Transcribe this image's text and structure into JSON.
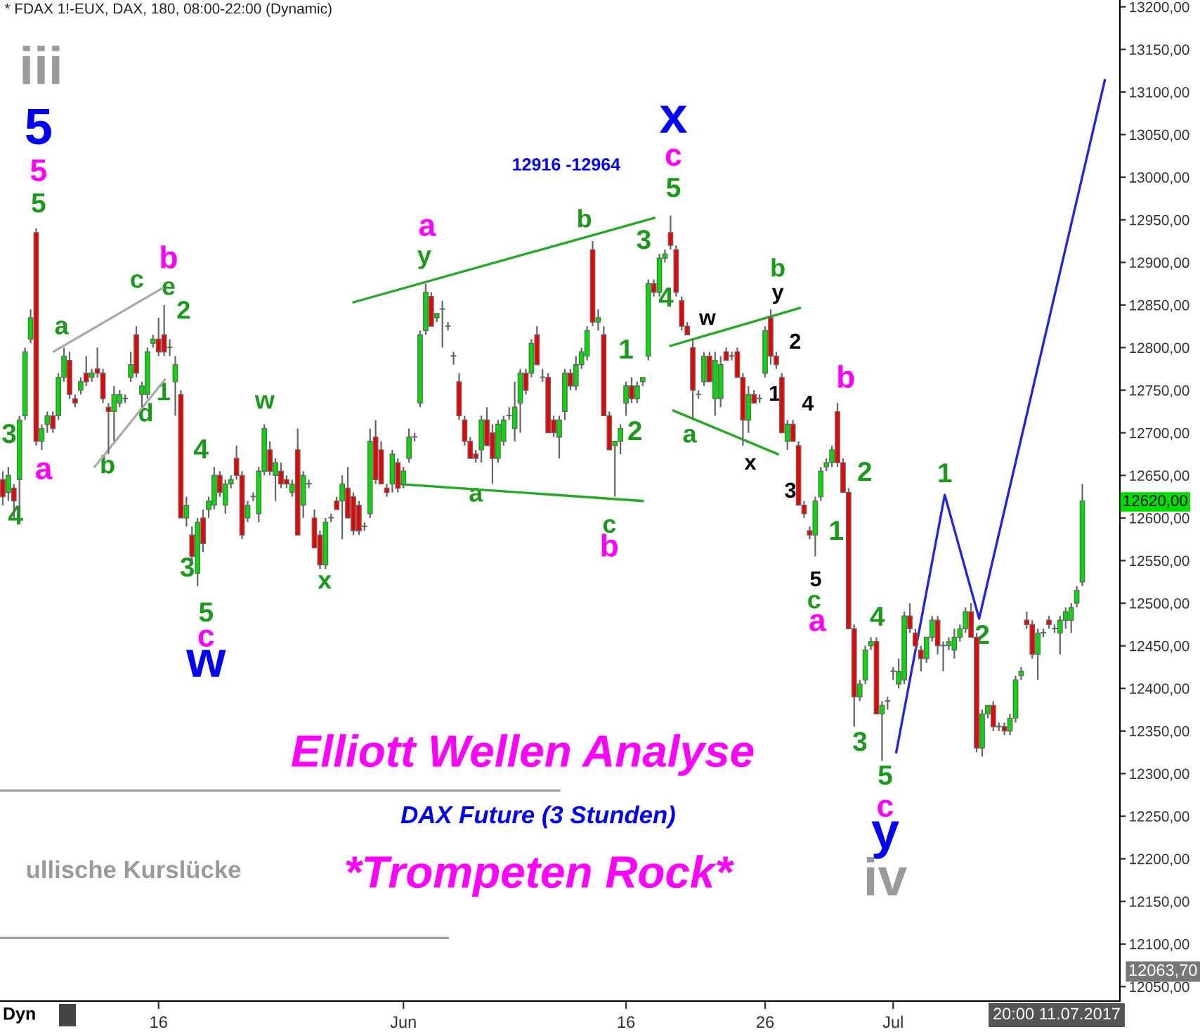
{
  "chart_data": {
    "type": "candlestick",
    "title": "* FDAX 1!-EUX, DAX, 180, 08:00-22:00 (Dynamic)",
    "categories": [
      null,
      null,
      null,
      null,
      null,
      null,
      null,
      null,
      null,
      null,
      null,
      null,
      null,
      null,
      null,
      null,
      null,
      null,
      null,
      null,
      null,
      null,
      null,
      null,
      null,
      null,
      null,
      null,
      "16",
      null,
      null,
      null,
      null,
      null,
      null,
      null,
      null,
      null,
      null,
      null,
      null,
      null,
      null,
      null,
      null,
      null,
      null,
      null,
      null,
      null,
      null,
      null,
      null,
      null,
      null,
      null,
      null,
      null,
      null,
      null,
      null,
      null,
      null,
      null,
      null,
      null,
      null,
      null,
      null,
      null,
      null,
      null,
      "Jun",
      null,
      null,
      null,
      null,
      null,
      null,
      null,
      null,
      null,
      null,
      null,
      null,
      null,
      null,
      null,
      null,
      null,
      null,
      null,
      null,
      null,
      null,
      null,
      null,
      null,
      null,
      null,
      null,
      null,
      null,
      null,
      null,
      null,
      null,
      null,
      null,
      null,
      null,
      null,
      "16",
      null,
      null,
      null,
      null,
      null,
      null,
      null,
      null,
      null,
      null,
      null,
      null,
      null,
      null,
      null,
      null,
      null,
      null,
      null,
      null,
      null,
      null,
      null,
      null,
      "26",
      null,
      null,
      null,
      null,
      null,
      null,
      null,
      null,
      null,
      null,
      null,
      null,
      null,
      null,
      null,
      null,
      null,
      null,
      null,
      null,
      null,
      null,
      "Jul",
      null,
      null,
      null,
      null,
      null,
      null,
      null,
      null,
      null,
      null,
      null,
      null,
      null,
      null,
      null,
      null,
      null,
      null,
      null,
      null,
      null,
      null,
      null,
      null,
      null,
      null,
      null,
      null,
      null,
      null,
      null,
      null,
      null,
      null
    ],
    "ohlc": [
      [
        12645,
        12655,
        12615,
        12625
      ],
      [
        12630,
        12660,
        12620,
        12650
      ],
      [
        12635,
        12640,
        12600,
        12620
      ],
      [
        12645,
        12720,
        12605,
        12715
      ],
      [
        12720,
        12800,
        12715,
        12795
      ],
      [
        12810,
        12845,
        12805,
        12835
      ],
      [
        12935,
        12940,
        12685,
        12690
      ],
      [
        12690,
        12710,
        12680,
        12705
      ],
      [
        12710,
        12725,
        12700,
        12720
      ],
      [
        12720,
        12725,
        12700,
        12705
      ],
      [
        12720,
        12770,
        12715,
        12765
      ],
      [
        12765,
        12800,
        12760,
        12790
      ],
      [
        12785,
        12795,
        12740,
        12745
      ],
      [
        12740,
        12745,
        12730,
        12735
      ],
      [
        12750,
        12765,
        12745,
        12760
      ],
      [
        12770,
        12790,
        12755,
        12760
      ],
      [
        12765,
        12775,
        12760,
        12770
      ],
      [
        12775,
        12800,
        12765,
        12770
      ],
      [
        12770,
        12775,
        12735,
        12740
      ],
      [
        12730,
        12735,
        12675,
        12725
      ],
      [
        12725,
        12755,
        12690,
        12745
      ],
      [
        12735,
        12750,
        12730,
        12745
      ],
      [
        12740,
        12745,
        12735,
        12740
      ],
      [
        12765,
        12795,
        12760,
        12780
      ],
      [
        12815,
        12825,
        12765,
        12770
      ],
      [
        12745,
        12760,
        12730,
        12755
      ],
      [
        12745,
        12800,
        12740,
        12795
      ],
      [
        12805,
        12815,
        12800,
        12810
      ],
      [
        12810,
        12835,
        12790,
        12795
      ],
      [
        12815,
        12850,
        12790,
        12795
      ],
      [
        12800,
        12810,
        12790,
        12800
      ],
      [
        12760,
        12790,
        12720,
        12780
      ],
      [
        12745,
        12750,
        12600,
        12600
      ],
      [
        12600,
        12625,
        12590,
        12615
      ],
      [
        12580,
        12590,
        12545,
        12555
      ],
      [
        12535,
        12600,
        12520,
        12595
      ],
      [
        12600,
        12610,
        12560,
        12570
      ],
      [
        12610,
        12625,
        12600,
        12620
      ],
      [
        12615,
        12660,
        12610,
        12650
      ],
      [
        12650,
        12655,
        12625,
        12630
      ],
      [
        12615,
        12645,
        12605,
        12640
      ],
      [
        12640,
        12650,
        12635,
        12645
      ],
      [
        12670,
        12685,
        12645,
        12650
      ],
      [
        12650,
        12655,
        12575,
        12580
      ],
      [
        12600,
        12620,
        12595,
        12615
      ],
      [
        12625,
        12630,
        12620,
        12625
      ],
      [
        12605,
        12660,
        12595,
        12655
      ],
      [
        12655,
        12710,
        12650,
        12705
      ],
      [
        12680,
        12690,
        12650,
        12655
      ],
      [
        12650,
        12670,
        12620,
        12665
      ],
      [
        12655,
        12665,
        12635,
        12640
      ],
      [
        12645,
        12650,
        12635,
        12640
      ],
      [
        12630,
        12645,
        12625,
        12640
      ],
      [
        12680,
        12705,
        12580,
        12580
      ],
      [
        12615,
        12655,
        12600,
        12650
      ],
      [
        12640,
        12645,
        12635,
        12640
      ],
      [
        12600,
        12610,
        12565,
        12565
      ],
      [
        12580,
        12585,
        12540,
        12545
      ],
      [
        12545,
        12600,
        12540,
        12595
      ],
      [
        12600,
        12605,
        12595,
        12600
      ],
      [
        12620,
        12625,
        12610,
        12610
      ],
      [
        12620,
        12650,
        12575,
        12640
      ],
      [
        12635,
        12660,
        12600,
        12600
      ],
      [
        12625,
        12630,
        12580,
        12585
      ],
      [
        12615,
        12620,
        12580,
        12585
      ],
      [
        12590,
        12595,
        12585,
        12590
      ],
      [
        12605,
        12705,
        12600,
        12690
      ],
      [
        12695,
        12715,
        12640,
        12645
      ],
      [
        12680,
        12690,
        12640,
        12640
      ],
      [
        12635,
        12640,
        12625,
        12630
      ],
      [
        12640,
        12680,
        12630,
        12675
      ],
      [
        12665,
        12670,
        12630,
        12635
      ],
      [
        12640,
        12660,
        12635,
        12655
      ],
      [
        12670,
        12705,
        12665,
        12695
      ],
      [
        12695,
        12700,
        12690,
        12695
      ],
      [
        12735,
        12820,
        12730,
        12815
      ],
      [
        12820,
        12875,
        12815,
        12865
      ],
      [
        12860,
        12865,
        12825,
        12825
      ],
      [
        12835,
        12840,
        12830,
        12840
      ],
      [
        12845,
        12855,
        12800,
        12845
      ],
      [
        12825,
        12830,
        12820,
        12825
      ],
      [
        12790,
        12795,
        12780,
        12790
      ],
      [
        12760,
        12770,
        12715,
        12720
      ],
      [
        12715,
        12720,
        12685,
        12690
      ],
      [
        12690,
        12695,
        12670,
        12670
      ],
      [
        12675,
        12680,
        12665,
        12670
      ],
      [
        12680,
        12720,
        12665,
        12715
      ],
      [
        12715,
        12730,
        12685,
        12685
      ],
      [
        12700,
        12710,
        12640,
        12670
      ],
      [
        12670,
        12715,
        12665,
        12710
      ],
      [
        12690,
        12720,
        12685,
        12715
      ],
      [
        12720,
        12730,
        12715,
        12720
      ],
      [
        12705,
        12760,
        12690,
        12730
      ],
      [
        12735,
        12775,
        12700,
        12770
      ],
      [
        12770,
        12775,
        12745,
        12750
      ],
      [
        12770,
        12810,
        12765,
        12805
      ],
      [
        12815,
        12825,
        12780,
        12780
      ],
      [
        12765,
        12775,
        12760,
        12765
      ],
      [
        12765,
        12770,
        12700,
        12700
      ],
      [
        12715,
        12720,
        12695,
        12700
      ],
      [
        12695,
        12720,
        12670,
        12715
      ],
      [
        12725,
        12775,
        12715,
        12770
      ],
      [
        12770,
        12775,
        12750,
        12755
      ],
      [
        12755,
        12790,
        12750,
        12780
      ],
      [
        12780,
        12800,
        12775,
        12795
      ],
      [
        12790,
        12825,
        12785,
        12820
      ],
      [
        12915,
        12925,
        12825,
        12830
      ],
      [
        12830,
        12845,
        12820,
        12835
      ],
      [
        12815,
        12825,
        12720,
        12720
      ],
      [
        12720,
        12725,
        12680,
        12680
      ],
      [
        12685,
        12690,
        12625,
        12690
      ],
      [
        12690,
        12710,
        12675,
        12705
      ],
      [
        12735,
        12760,
        12720,
        12755
      ],
      [
        12755,
        12765,
        12735,
        12740
      ],
      [
        12740,
        12760,
        12735,
        12755
      ],
      [
        12760,
        12765,
        12755,
        12765
      ],
      [
        12790,
        12880,
        12785,
        12875
      ],
      [
        12875,
        12880,
        12860,
        12865
      ],
      [
        12865,
        12910,
        12860,
        12905
      ],
      [
        12905,
        12915,
        12900,
        12910
      ],
      [
        12935,
        12955,
        12915,
        12920
      ],
      [
        12915,
        12920,
        12860,
        12865
      ],
      [
        12855,
        12860,
        12820,
        12825
      ],
      [
        12825,
        12830,
        12815,
        12815
      ],
      [
        12800,
        12810,
        12715,
        12750
      ],
      [
        12745,
        12750,
        12740,
        12745
      ],
      [
        12760,
        12795,
        12755,
        12790
      ],
      [
        12790,
        12795,
        12760,
        12760
      ],
      [
        12740,
        12795,
        12720,
        12785
      ],
      [
        12740,
        12790,
        12730,
        12780
      ],
      [
        12795,
        12800,
        12785,
        12785
      ],
      [
        12790,
        12795,
        12785,
        12790
      ],
      [
        12795,
        12800,
        12765,
        12765
      ],
      [
        12765,
        12770,
        12685,
        12715
      ],
      [
        12715,
        12755,
        12700,
        12745
      ],
      [
        12745,
        12750,
        12735,
        12735
      ],
      [
        12740,
        12745,
        12735,
        12740
      ],
      [
        12770,
        12825,
        12765,
        12820
      ],
      [
        12835,
        12845,
        12780,
        12790
      ],
      [
        12790,
        12795,
        12775,
        12780
      ],
      [
        12765,
        12770,
        12700,
        12700
      ],
      [
        12690,
        12715,
        12680,
        12710
      ],
      [
        12710,
        12715,
        12690,
        12690
      ],
      [
        12685,
        12690,
        12615,
        12615
      ],
      [
        12615,
        12620,
        12600,
        12605
      ],
      [
        12585,
        12590,
        12575,
        12580
      ],
      [
        12580,
        12625,
        12555,
        12620
      ],
      [
        12625,
        12660,
        12620,
        12655
      ],
      [
        12660,
        12670,
        12655,
        12665
      ],
      [
        12665,
        12685,
        12660,
        12680
      ],
      [
        12725,
        12735,
        12660,
        12665
      ],
      [
        12665,
        12670,
        12630,
        12630
      ],
      [
        12630,
        12635,
        12470,
        12470
      ],
      [
        12470,
        12475,
        12355,
        12390
      ],
      [
        12390,
        12410,
        12385,
        12405
      ],
      [
        12410,
        12450,
        12405,
        12445
      ],
      [
        12450,
        12460,
        12445,
        12455
      ],
      [
        12455,
        12460,
        12370,
        12370
      ],
      [
        12370,
        12385,
        12315,
        12380
      ],
      [
        12385,
        12390,
        12375,
        12385
      ],
      [
        12420,
        12425,
        12410,
        12420
      ],
      [
        12405,
        12435,
        12400,
        12420
      ],
      [
        12410,
        12490,
        12405,
        12485
      ],
      [
        12485,
        12500,
        12465,
        12470
      ],
      [
        12465,
        12470,
        12445,
        12450
      ],
      [
        12445,
        12450,
        12420,
        12435
      ],
      [
        12435,
        12460,
        12430,
        12460
      ],
      [
        12460,
        12485,
        12455,
        12480
      ],
      [
        12480,
        12485,
        12440,
        12450
      ],
      [
        12450,
        12455,
        12420,
        12450
      ],
      [
        12450,
        12460,
        12445,
        12455
      ],
      [
        12445,
        12470,
        12435,
        12460
      ],
      [
        12460,
        12475,
        12455,
        12470
      ],
      [
        12470,
        12495,
        12465,
        12490
      ],
      [
        12490,
        12500,
        12460,
        12460
      ],
      [
        12460,
        12465,
        12325,
        12330
      ],
      [
        12330,
        12375,
        12320,
        12370
      ],
      [
        12370,
        12380,
        12365,
        12380
      ],
      [
        12380,
        12385,
        12350,
        12355
      ],
      [
        12355,
        12360,
        12350,
        12355
      ],
      [
        12355,
        12360,
        12345,
        12350
      ],
      [
        12350,
        12370,
        12345,
        12365
      ],
      [
        12365,
        12415,
        12360,
        12410
      ],
      [
        12415,
        12425,
        12410,
        12420
      ],
      [
        12480,
        12490,
        12470,
        12475
      ],
      [
        12475,
        12480,
        12435,
        12440
      ],
      [
        12440,
        12470,
        12410,
        12465
      ],
      [
        12465,
        12470,
        12460,
        12465
      ],
      [
        12480,
        12485,
        12470,
        12475
      ],
      [
        12470,
        12475,
        12465,
        12470
      ],
      [
        12465,
        12485,
        12440,
        12480
      ],
      [
        12480,
        12495,
        12470,
        12490
      ],
      [
        12480,
        12500,
        12465,
        12495
      ],
      [
        12500,
        12520,
        12495,
        12515
      ],
      [
        12525,
        12640,
        12520,
        12620
      ]
    ],
    "series": [
      {
        "type": "line",
        "color": "#22aa22",
        "values": [
          null,
          null,
          null,
          null,
          null,
          null,
          null,
          null,
          null,
          null,
          null,
          null,
          null,
          null,
          null,
          null,
          null,
          null,
          null,
          null,
          null,
          null,
          null,
          null,
          null,
          null,
          null,
          null,
          null,
          null,
          null,
          null,
          null,
          null,
          null,
          null,
          null,
          null,
          null,
          null,
          null,
          null,
          null,
          null,
          null,
          null,
          null,
          null,
          null,
          null,
          null,
          null,
          null,
          null,
          null,
          null,
          null,
          null,
          null,
          null,
          null,
          null,
          null,
          null,
          null,
          null,
          null,
          null,
          null,
          null,
          null,
          12640,
          null,
          null,
          null,
          null,
          null,
          null,
          null,
          null,
          null,
          null,
          null,
          null,
          null,
          null,
          null,
          null,
          null,
          null,
          null,
          null,
          null,
          null,
          null,
          null,
          null,
          null,
          null,
          null,
          null,
          null,
          null,
          null,
          null,
          null,
          null,
          null,
          null,
          null,
          null,
          null,
          null,
          null,
          null,
          12620,
          null,
          null,
          null,
          null,
          null,
          null,
          null,
          null,
          null,
          null,
          null,
          null,
          null,
          null,
          null,
          null,
          null,
          null,
          null,
          null,
          null,
          null,
          null,
          null,
          null,
          null,
          null,
          null,
          null,
          null,
          null,
          null,
          null,
          null,
          null,
          null,
          null,
          null,
          null,
          null,
          null,
          null,
          null,
          null,
          null,
          null,
          null,
          null,
          null,
          null,
          null,
          null,
          null,
          null,
          null,
          null,
          null,
          null,
          null,
          null,
          null,
          null,
          null,
          null,
          null,
          null,
          null,
          null,
          null,
          null,
          null,
          null,
          null,
          null,
          null,
          null,
          null,
          null,
          null
        ]
      }
    ],
    "ylim": [
      12033,
      13208
    ],
    "yticks": [
      {
        "value": 12050,
        "label": "12050,00"
      },
      {
        "value": 12100,
        "label": "12100,00"
      },
      {
        "value": 12150,
        "label": "12150,00"
      },
      {
        "value": 12200,
        "label": "12200,00"
      },
      {
        "value": 12250,
        "label": "12250,00"
      },
      {
        "value": 12300,
        "label": "12300,00"
      },
      {
        "value": 12350,
        "label": "12350,00"
      },
      {
        "value": 12400,
        "label": "12400,00"
      },
      {
        "value": 12450,
        "label": "12450,00"
      },
      {
        "value": 12500,
        "label": "12500,00"
      },
      {
        "value": 12550,
        "label": "12550,00"
      },
      {
        "value": 12600,
        "label": "12600,00"
      },
      {
        "value": 12650,
        "label": "12650,00"
      },
      {
        "value": 12700,
        "label": "12700,00"
      },
      {
        "value": 12750,
        "label": "12750,00"
      },
      {
        "value": 12800,
        "label": "12800,00"
      },
      {
        "value": 12850,
        "label": "12850,00"
      },
      {
        "value": 12900,
        "label": "12900,00"
      },
      {
        "value": 12950,
        "label": "12950,00"
      },
      {
        "value": 13000,
        "label": "13000,00"
      },
      {
        "value": 13050,
        "label": "13050,00"
      },
      {
        "value": 13100,
        "label": "13100,00"
      },
      {
        "value": 13150,
        "label": "13150,00"
      },
      {
        "value": 13200,
        "label": "13200,00"
      }
    ],
    "ref_lines": [
      {
        "axis": "y",
        "value": 12280,
        "label": null,
        "color": "#a0a0a0"
      },
      {
        "axis": "y",
        "value": 12107,
        "label": null,
        "color": "#a0a0a0"
      }
    ],
    "annotations": [
      "iii",
      "5",
      "5",
      "5",
      "3",
      "4",
      "a",
      "a",
      "c",
      "b",
      "e",
      "2",
      "1",
      "d",
      "b",
      "w",
      "4",
      "3",
      "5",
      "c",
      "w",
      "x",
      "a",
      "y",
      "a",
      "b",
      "12916 -12964",
      "x",
      "c",
      "5",
      "3",
      "4",
      "w",
      "1",
      "2",
      {
        "text": "c",
        "y": 12625
      },
      "b",
      "a",
      "x",
      "b",
      "y",
      "2",
      "1",
      "4",
      "3",
      "5",
      "c",
      "a",
      "b",
      "2",
      "1",
      "4",
      "3",
      "5",
      "c",
      "y",
      "iv",
      "1",
      "2",
      "Elliott Wellen Analyse",
      "DAX Future (3 Stunden)",
      "*Trompeten Rock*",
      "ullische Kurslücke",
      "12620,00",
      "12063,70",
      "20:00 11.07.2017",
      "Dyn"
    ]
  }
}
